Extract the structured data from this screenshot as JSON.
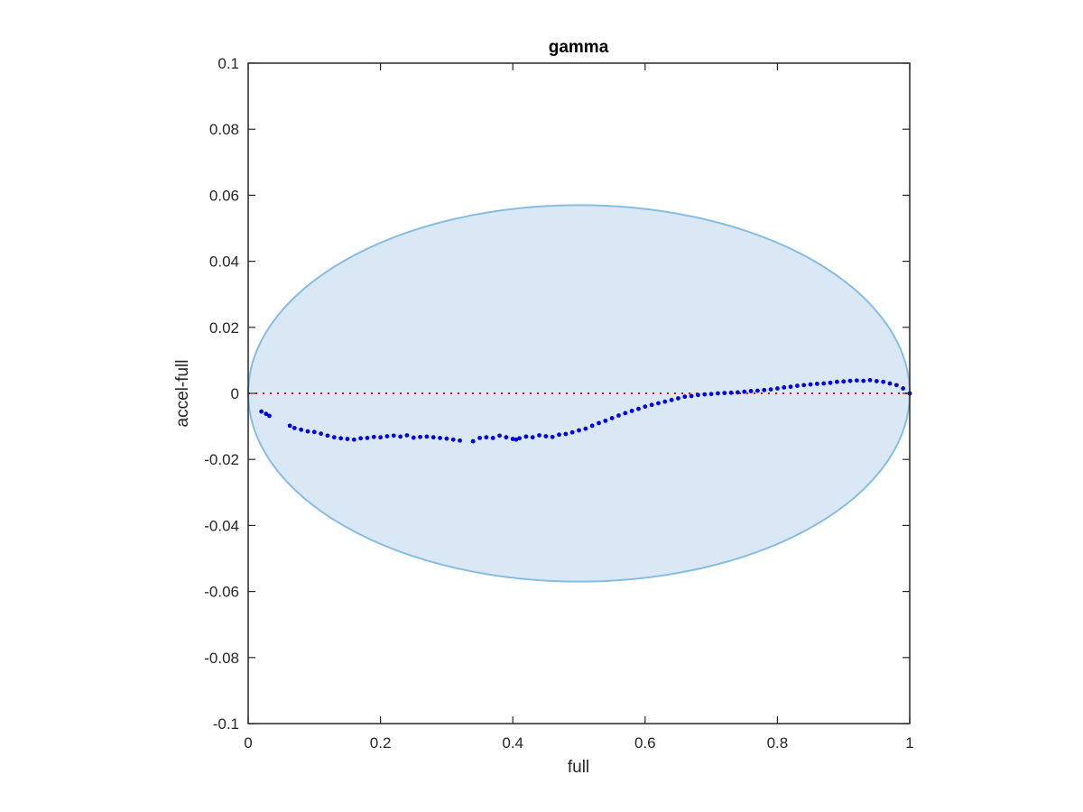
{
  "chart_data": {
    "type": "scatter",
    "title": "gamma",
    "xlabel": "full",
    "ylabel": "accel-full",
    "xlim": [
      0,
      1
    ],
    "ylim": [
      -0.1,
      0.1
    ],
    "grid": false,
    "x_ticks": [
      0,
      0.2,
      0.4,
      0.6,
      0.8,
      1
    ],
    "x_tick_labels": [
      "0",
      "0.2",
      "0.4",
      "0.6",
      "0.8",
      "1"
    ],
    "y_ticks": [
      0.1,
      0.08,
      0.06,
      0.04,
      0.02,
      0,
      -0.02,
      -0.04,
      -0.06,
      -0.08,
      -0.1
    ],
    "y_tick_labels": [
      "0.1",
      "0.08",
      "0.06",
      "0.04",
      "0.02",
      "0",
      "-0.02",
      "-0.04",
      "-0.06",
      "-0.08",
      "-0.1"
    ],
    "reference_line": {
      "y": 0,
      "style": "dotted",
      "color": "#ff0000"
    },
    "region": {
      "shape": "ellipse",
      "center": [
        0.5,
        0
      ],
      "x_radius": 0.5,
      "y_radius": 0.057,
      "fill": "#d9e8f4",
      "stroke": "#88bde0"
    },
    "series": [
      {
        "color": "#0000e6",
        "x": [
          0.02,
          0.027,
          0.032,
          0.063,
          0.07,
          0.08,
          0.09,
          0.1,
          0.11,
          0.12,
          0.13,
          0.14,
          0.15,
          0.16,
          0.17,
          0.18,
          0.19,
          0.2,
          0.21,
          0.22,
          0.23,
          0.24,
          0.25,
          0.26,
          0.27,
          0.28,
          0.29,
          0.3,
          0.31,
          0.32,
          0.34,
          0.35,
          0.36,
          0.37,
          0.38,
          0.39,
          0.4,
          0.405,
          0.41,
          0.42,
          0.43,
          0.44,
          0.45,
          0.46,
          0.47,
          0.48,
          0.49,
          0.5,
          0.51,
          0.52,
          0.53,
          0.54,
          0.55,
          0.56,
          0.57,
          0.58,
          0.59,
          0.6,
          0.61,
          0.62,
          0.63,
          0.64,
          0.65,
          0.66,
          0.67,
          0.68,
          0.69,
          0.7,
          0.71,
          0.72,
          0.73,
          0.74,
          0.75,
          0.76,
          0.77,
          0.78,
          0.79,
          0.8,
          0.81,
          0.82,
          0.83,
          0.84,
          0.85,
          0.86,
          0.87,
          0.88,
          0.89,
          0.9,
          0.91,
          0.92,
          0.93,
          0.94,
          0.95,
          0.96,
          0.97,
          0.98,
          0.99,
          1.0
        ],
        "y": [
          -0.0055,
          -0.0062,
          -0.0068,
          -0.0098,
          -0.0105,
          -0.011,
          -0.0115,
          -0.0117,
          -0.0122,
          -0.0128,
          -0.0133,
          -0.0136,
          -0.0138,
          -0.014,
          -0.0136,
          -0.0135,
          -0.0132,
          -0.0133,
          -0.013,
          -0.0128,
          -0.0131,
          -0.0127,
          -0.0134,
          -0.0132,
          -0.0131,
          -0.0133,
          -0.0135,
          -0.0137,
          -0.014,
          -0.0143,
          -0.0145,
          -0.0135,
          -0.0133,
          -0.0135,
          -0.0128,
          -0.0133,
          -0.0138,
          -0.014,
          -0.0136,
          -0.0131,
          -0.0133,
          -0.0127,
          -0.013,
          -0.0132,
          -0.0125,
          -0.0123,
          -0.0118,
          -0.0112,
          -0.0107,
          -0.0098,
          -0.009,
          -0.0083,
          -0.0075,
          -0.0067,
          -0.006,
          -0.0053,
          -0.0047,
          -0.004,
          -0.0035,
          -0.003,
          -0.0025,
          -0.002,
          -0.0015,
          -0.001,
          -0.0008,
          -0.0005,
          -0.0003,
          -0.0002,
          0.0,
          0.0001,
          0.0002,
          0.0003,
          0.0005,
          0.0007,
          0.0008,
          0.001,
          0.0012,
          0.0015,
          0.0018,
          0.002,
          0.0023,
          0.0025,
          0.0027,
          0.0029,
          0.003,
          0.0032,
          0.0035,
          0.0036,
          0.0038,
          0.0039,
          0.0038,
          0.004,
          0.0037,
          0.0035,
          0.003,
          0.0025,
          0.0015,
          0.0
        ]
      }
    ]
  }
}
